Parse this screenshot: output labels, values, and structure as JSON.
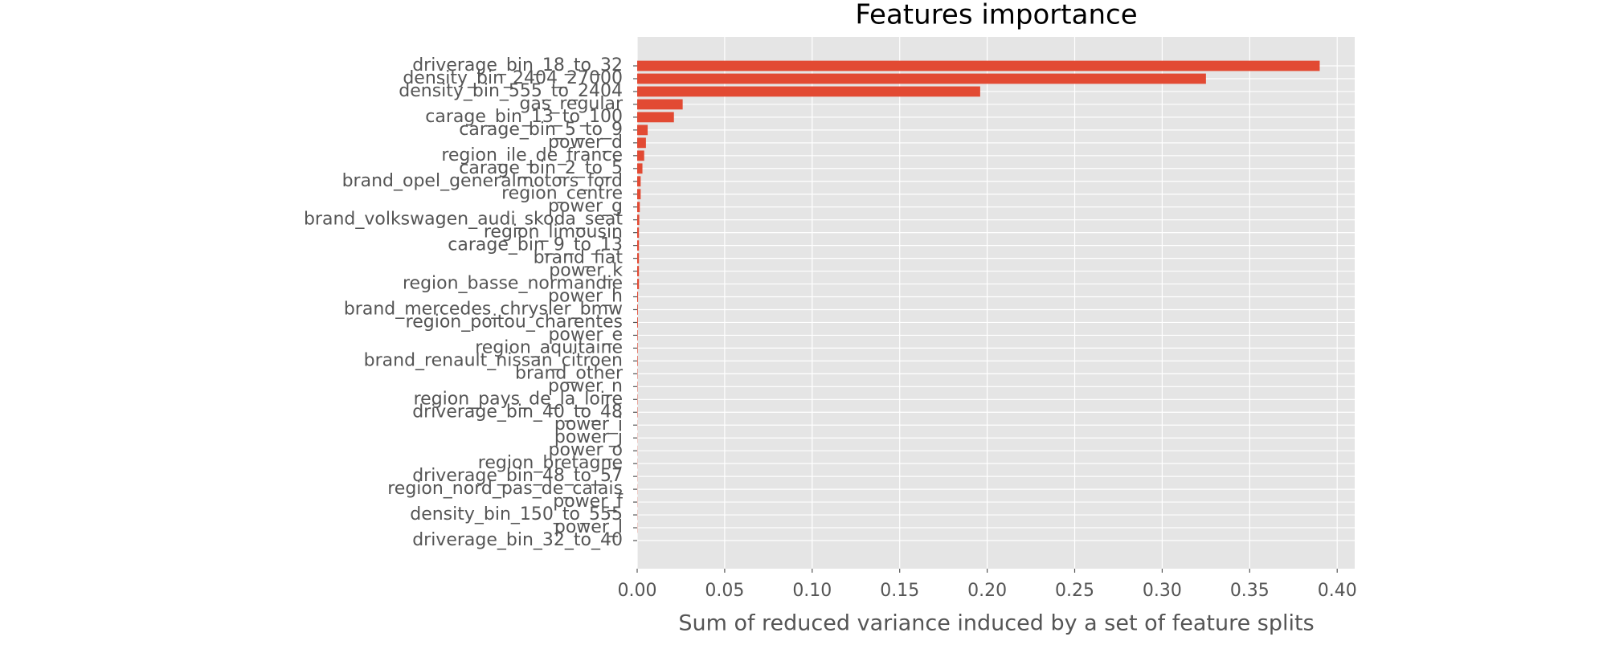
{
  "chart_data": {
    "type": "barh",
    "title": "Features importance",
    "xlabel": "Sum of reduced variance induced by a set of feature splits",
    "categories": [
      "driverage_bin_18_to_32",
      "density_bin_2404_27000",
      "density_bin_555_to_2404",
      "gas_regular",
      "carage_bin_13_to_100",
      "carage_bin_5_to_9",
      "power_d",
      "region_ile_de_france",
      "carage_bin_2_to_5",
      "brand_opel_generalmotors_ford",
      "region_centre",
      "power_g",
      "brand_volkswagen_audi_skoda_seat",
      "region_limousin",
      "carage_bin_9_to_13",
      "brand_fiat",
      "power_k",
      "region_basse_normandie",
      "power_h",
      "brand_mercedes_chrysler_bmw",
      "region_poitou_charentes",
      "power_e",
      "region_aquitaine",
      "brand_renault_nissan_citroen",
      "brand_other",
      "power_n",
      "region_pays_de_la_loire",
      "driverage_bin_40_to_48",
      "power_i",
      "power_j",
      "power_o",
      "region_bretagne",
      "driverage_bin_48_to_57",
      "region_nord_pas_de_calais",
      "power_f",
      "density_bin_150_to_555",
      "power_l",
      "driverage_bin_32_to_40"
    ],
    "values": [
      0.39,
      0.325,
      0.196,
      0.026,
      0.021,
      0.006,
      0.005,
      0.004,
      0.003,
      0.002,
      0.002,
      0.0015,
      0.0012,
      0.001,
      0.001,
      0.001,
      0.001,
      0.001,
      0.0005,
      0.0004,
      0.0004,
      0.0003,
      0.0003,
      0.0003,
      0.0002,
      0.0002,
      0.0002,
      0.0002,
      0.0001,
      0.0001,
      0.0001,
      0.0001,
      0.0001,
      0.0001,
      0.0001,
      0.0001,
      0.0001,
      0.0
    ],
    "color": "#E24A33",
    "xlim": [
      0,
      0.41
    ],
    "xticks": [
      {
        "value": 0,
        "label": "0.00"
      },
      {
        "value": 0.05,
        "label": "0.05"
      },
      {
        "value": 0.1,
        "label": "0.10"
      },
      {
        "value": 0.15,
        "label": "0.15"
      },
      {
        "value": 0.2,
        "label": "0.20"
      },
      {
        "value": 0.25,
        "label": "0.25"
      },
      {
        "value": 0.3,
        "label": "0.30"
      },
      {
        "value": 0.35,
        "label": "0.35"
      },
      {
        "value": 0.4,
        "label": "0.40"
      }
    ],
    "grid": true
  }
}
